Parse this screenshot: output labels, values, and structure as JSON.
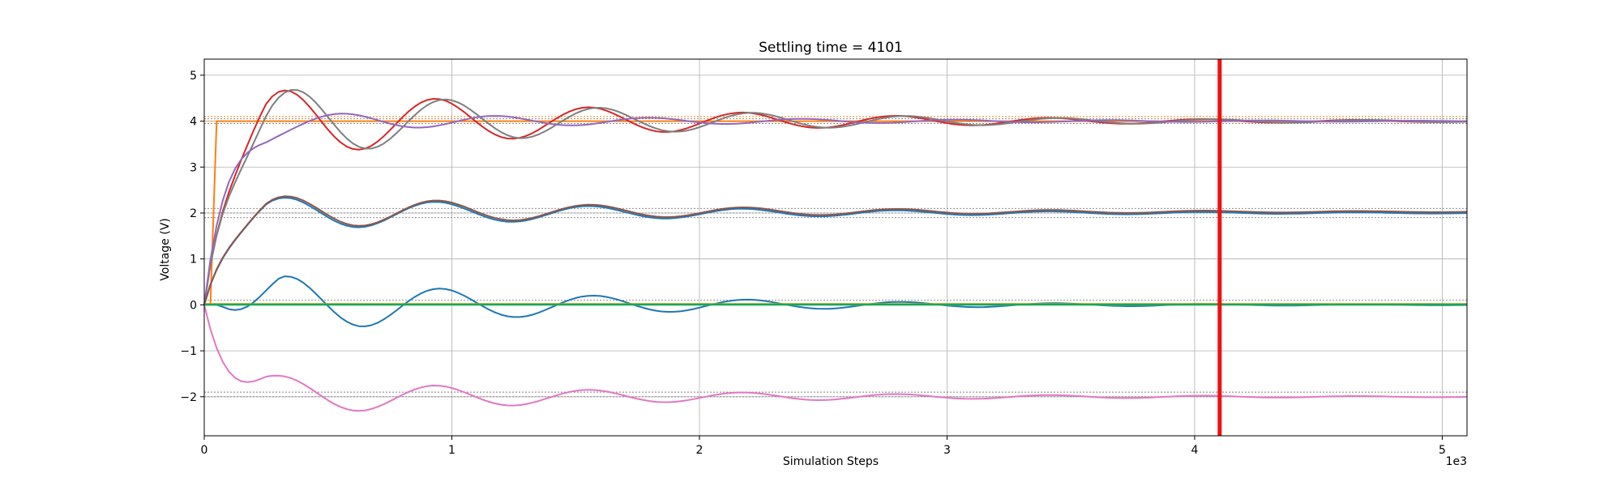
{
  "chart_data": {
    "type": "line",
    "title": "Settling time = 4101",
    "xlabel": "Simulation Steps",
    "ylabel": "Voltage (V)",
    "x_offset_label": "1e3",
    "xlim": [
      0,
      5100
    ],
    "ylim": [
      -2.85,
      5.35
    ],
    "x_ticks": [
      0,
      1000,
      2000,
      3000,
      4000,
      5000
    ],
    "x_tick_labels": [
      "0",
      "1",
      "2",
      "3",
      "4",
      "5"
    ],
    "y_ticks": [
      -2,
      -1,
      0,
      1,
      2,
      3,
      4,
      5
    ],
    "y_tick_labels": [
      "−2",
      "−1",
      "0",
      "1",
      "2",
      "3",
      "4",
      "5"
    ],
    "grid": true,
    "settling_time": 4101,
    "settling_color": "#ee1111",
    "reference_bands": [
      {
        "name": "band-4",
        "values": [
          4.05,
          3.95
        ],
        "color": "#7f7f7f"
      },
      {
        "name": "band-4-orange",
        "values": [
          4.1,
          4.0
        ],
        "color": "#ff7f0e"
      },
      {
        "name": "band-2",
        "values": [
          2.1,
          2.0,
          1.9
        ],
        "color": "#7f7f7f"
      },
      {
        "name": "band-0",
        "values": [
          0.1,
          0.0
        ],
        "color": "#7f7f7f"
      },
      {
        "name": "band-neg2",
        "values": [
          -1.9,
          -2.0
        ],
        "color": "#7f7f7f"
      }
    ],
    "series": [
      {
        "name": "orange-step",
        "color": "#ff7f0e",
        "mode": "step",
        "target": 4.0,
        "delay": 50
      },
      {
        "name": "red",
        "color": "#d62728",
        "mode": "osc",
        "target": 4.0,
        "amp": 1.0,
        "tau": 1300,
        "period": 620,
        "phase_t": 320,
        "start_t": 0,
        "clip_hi": 5.0
      },
      {
        "name": "gray",
        "color": "#7f7f7f",
        "mode": "osc",
        "target": 4.0,
        "amp": 1.0,
        "tau": 1300,
        "period": 620,
        "phase_t": 360,
        "start_t": 0,
        "clip_hi": 5.0
      },
      {
        "name": "purple",
        "color": "#9467bd",
        "mode": "osc",
        "target": 4.0,
        "amp": 0.25,
        "tau": 1500,
        "period": 620,
        "phase_t": 560,
        "start_t": 0
      },
      {
        "name": "blue-2v",
        "color": "#1f77b4",
        "mode": "osc",
        "target": 2.0,
        "amp": 0.5,
        "tau": 1300,
        "period": 620,
        "phase_t": 320,
        "start_t": 0,
        "clip_hi": 2.5
      },
      {
        "name": "brown-2v",
        "color": "#8c564b",
        "mode": "osc",
        "target": 2.03,
        "amp": 0.5,
        "tau": 1300,
        "period": 620,
        "phase_t": 325,
        "start_t": 0,
        "clip_hi": 2.5
      },
      {
        "name": "blue-0v",
        "color": "#1f77b4",
        "mode": "osc",
        "target": 0.0,
        "amp": 0.8,
        "tau": 1100,
        "period": 620,
        "phase_t": 280,
        "start_t": 60,
        "clip_hi": 0.9,
        "clip_lo": -1.0
      },
      {
        "name": "olive-0v",
        "color": "#bcbd22",
        "mode": "flat",
        "target": 0.02
      },
      {
        "name": "cyan-0v",
        "color": "#17becf",
        "mode": "flat",
        "target": 0.0
      },
      {
        "name": "green-0v",
        "color": "#2ca02c",
        "mode": "flat",
        "target": 0.01
      },
      {
        "name": "pink-neg2v",
        "color": "#e377c2",
        "mode": "osc",
        "target": -2.0,
        "amp": 0.5,
        "tau": 1300,
        "period": 620,
        "phase_t": 320,
        "start_t": 0,
        "clip_lo": -2.5
      }
    ]
  }
}
